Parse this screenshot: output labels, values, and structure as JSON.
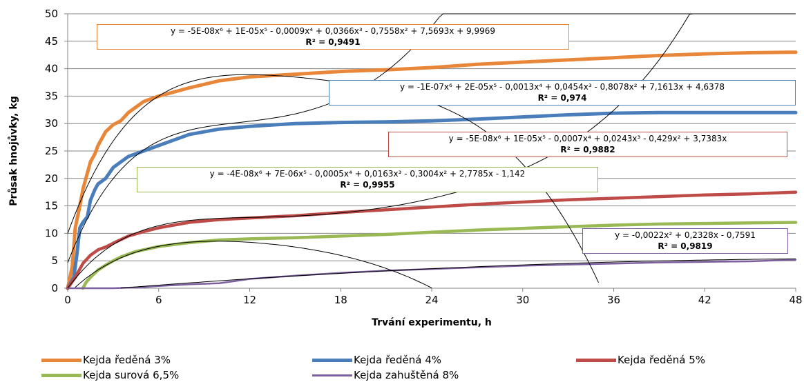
{
  "chart_data": {
    "type": "line",
    "xlabel": "Trvání experimentu, h",
    "ylabel": "Průsak hnojůvky, kg",
    "xlim": [
      0,
      48
    ],
    "ylim": [
      0,
      50
    ],
    "xticks": [
      "0",
      "6",
      "12",
      "18",
      "24",
      "30",
      "36",
      "42",
      "48"
    ],
    "yticks": [
      "0",
      "5",
      "10",
      "15",
      "20",
      "25",
      "30",
      "35",
      "40",
      "45",
      "50"
    ],
    "grid": "horizontal",
    "legend_position": "bottom",
    "series": [
      {
        "name": "Kejda ředěná 3%",
        "color": "#E8873A",
        "equation": "y = -5E-08x⁶ + 1E-05x⁵ - 0,0009x⁴ + 0,0366x³ - 0,7558x² + 7,5693x + 9,9969",
        "r2": "R² = 0,9491",
        "x": [
          0,
          0.3,
          0.5,
          0.8,
          1.0,
          1.3,
          1.5,
          1.8,
          2.0,
          2.5,
          3.0,
          3.5,
          4.0,
          5.0,
          6.0,
          8.0,
          10.0,
          12.0,
          15.0,
          18.0,
          21.0,
          24.0,
          27.0,
          30.0,
          33.0,
          36.0,
          39.0,
          42.0,
          45.0,
          48.0
        ],
        "y": [
          0,
          4,
          11,
          15,
          18,
          21,
          23,
          24.5,
          26,
          28.5,
          29.8,
          30.5,
          32,
          34,
          35,
          36.5,
          37.8,
          38.5,
          39,
          39.5,
          39.8,
          40.2,
          40.8,
          41.2,
          41.6,
          42,
          42.4,
          42.7,
          42.9,
          43
        ]
      },
      {
        "name": "Kejda ředěná 4%",
        "color": "#4A7EBB",
        "equation": "y = -1E-07x⁶ + 2E-05x⁵ - 0,0013x⁴ + 0,0454x³ - 0,8078x² + 7,1613x + 4,6378",
        "r2": "R² = 0,974",
        "x": [
          0,
          0.4,
          0.6,
          0.8,
          1.0,
          1.3,
          1.5,
          1.8,
          2.0,
          2.5,
          3.0,
          3.5,
          4.0,
          5.0,
          6.0,
          8.0,
          10.0,
          12.0,
          15.0,
          18.0,
          21.0,
          24.0,
          27.0,
          30.0,
          33.0,
          36.0,
          39.0,
          42.0,
          45.0,
          48.0
        ],
        "y": [
          0,
          2,
          6,
          11,
          12,
          13,
          16,
          18,
          19,
          20,
          22,
          23,
          24,
          25,
          26,
          28,
          29,
          29.5,
          30,
          30.2,
          30.3,
          30.5,
          30.8,
          31.2,
          31.6,
          31.9,
          32,
          32,
          32,
          32
        ]
      },
      {
        "name": "Kejda ředěná 5%",
        "color": "#BE4B48",
        "equation": "y = -5E-08x⁶ + 1E-05x⁵ - 0,0007x⁴ + 0,0243x³ - 0,429x² + 3,7383x",
        "r2": "R² = 0,9882",
        "x": [
          0,
          0.5,
          1.0,
          1.5,
          2.0,
          2.5,
          3.0,
          4.0,
          5.0,
          6.0,
          8.0,
          10.0,
          12.0,
          15.0,
          18.0,
          21.0,
          24.0,
          27.0,
          30.0,
          33.0,
          36.0,
          39.0,
          42.0,
          45.0,
          48.0
        ],
        "y": [
          0,
          2,
          4.5,
          6,
          7,
          7.5,
          8.2,
          9.5,
          10.3,
          11,
          12,
          12.5,
          12.8,
          13.2,
          13.8,
          14.3,
          14.8,
          15.3,
          15.7,
          16.1,
          16.4,
          16.7,
          17,
          17.2,
          17.5
        ]
      },
      {
        "name": "Kejda surová 6,5%",
        "color": "#98B954",
        "equation": "y = -4E-08x⁶ + 7E-06x⁵ - 0,0005x⁴ + 0,0163x³ - 0,3004x² + 2,7785x - 1,142",
        "r2": "R² = 0,9955",
        "x": [
          1.0,
          1.2,
          1.5,
          2.0,
          2.5,
          3.0,
          3.5,
          4.0,
          4.5,
          5.0,
          6.0,
          8.0,
          10.0,
          12.0,
          15.0,
          18.0,
          21.0,
          24.0,
          27.0,
          30.0,
          33.0,
          36.0,
          39.0,
          42.0,
          45.0,
          48.0
        ],
        "y": [
          0,
          1,
          2,
          3.3,
          4.2,
          5,
          5.7,
          6.2,
          6.7,
          7,
          7.6,
          8.3,
          8.8,
          9,
          9.2,
          9.5,
          9.8,
          10.2,
          10.6,
          10.9,
          11.2,
          11.5,
          11.7,
          11.8,
          11.9,
          12
        ]
      },
      {
        "name": "Kejda zahuštěná 8%",
        "color": "#7D60A0",
        "equation": "y = -0,0022x² + 0,2328x - 0,7591",
        "r2": "R² = 0,9819",
        "x": [
          0,
          3.0,
          4.0,
          5.0,
          6.0,
          8.0,
          10.0,
          11.0,
          12.0,
          15.0,
          18.0,
          21.0,
          24.0,
          27.0,
          30.0,
          33.0,
          36.0,
          39.0,
          42.0,
          45.0,
          48.0
        ],
        "y": [
          0,
          0,
          0.1,
          0.2,
          0.4,
          0.7,
          0.9,
          1.3,
          1.7,
          2.3,
          2.8,
          3.2,
          3.5,
          3.8,
          4.1,
          4.3,
          4.5,
          4.7,
          4.8,
          4.9,
          5.2
        ]
      }
    ]
  }
}
